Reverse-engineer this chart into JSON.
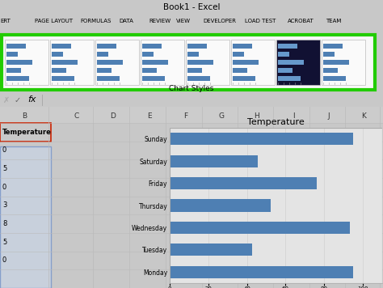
{
  "title": "Book1 - Excel",
  "chart_title": "Temperature",
  "days": [
    "Monday",
    "Tuesday",
    "Wednesday",
    "Thursday",
    "Friday",
    "Saturday",
    "Sunday"
  ],
  "values": [
    100,
    45,
    98,
    55,
    80,
    48,
    100
  ],
  "bar_color": "#4E7FB3",
  "bg_color": "#C8C8C8",
  "cell_bg": "#D8D8D8",
  "header_bg": "#C0C0C0",
  "ribbon_bg": "#EBEBEB",
  "green_border": "#22CC00",
  "thumb_dark_bg": "#1A1A2E",
  "menu_items": [
    "ERT",
    "PAGE LAYOUT",
    "FORMULAS",
    "DATA",
    "REVIEW",
    "VIEW",
    "DEVELOPER",
    "LOAD TEST",
    "ACROBAT",
    "TEAM"
  ],
  "col_labels": [
    "B",
    "C",
    "D",
    "E",
    "F",
    "G",
    "H",
    "I",
    "J",
    "K"
  ],
  "row_data": [
    "Temperature",
    "0",
    "5",
    "0",
    "3",
    "8",
    "5",
    "0"
  ],
  "chart_styles_label": "Chart Styles"
}
